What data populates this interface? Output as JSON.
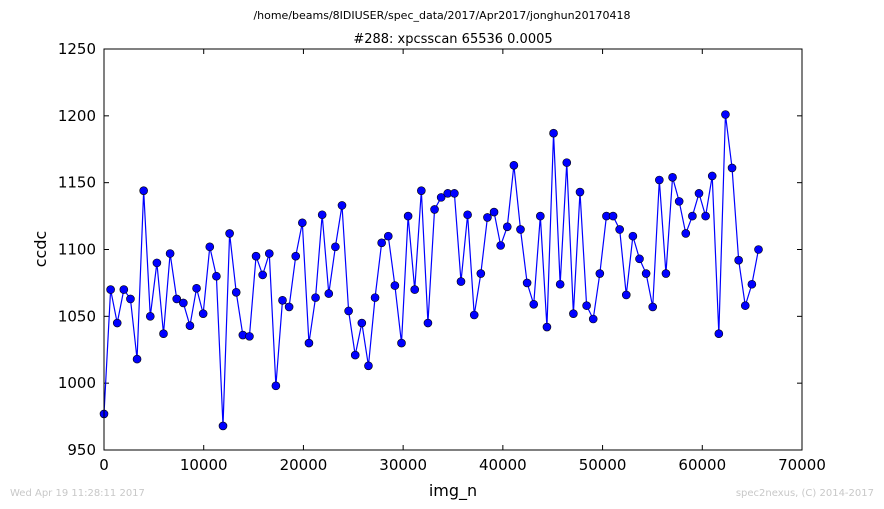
{
  "chart_data": {
    "type": "line",
    "suptitle": "/home/beams/8IDIUSER/spec_data/2017/Apr2017/jonghun20170418",
    "title": "#288: xpcsscan 65536 0.0005",
    "xlabel": "img_n",
    "ylabel": "ccdc",
    "xlim": [
      0,
      70000
    ],
    "ylim": [
      950,
      1250
    ],
    "xticks": [
      0,
      10000,
      20000,
      30000,
      40000,
      50000,
      60000,
      70000
    ],
    "yticks": [
      950,
      1000,
      1050,
      1100,
      1150,
      1200,
      1250
    ],
    "grid": false,
    "series": [
      {
        "color": "#0000ff",
        "marker": "circle",
        "x": [
          0,
          663,
          1326,
          1989,
          2652,
          3315,
          3978,
          4641,
          5304,
          5967,
          6630,
          7293,
          7956,
          8619,
          9282,
          9945,
          10608,
          11271,
          11934,
          12597,
          13260,
          13923,
          14586,
          15249,
          15912,
          16575,
          17238,
          17901,
          18564,
          19227,
          19890,
          20553,
          21216,
          21879,
          22542,
          23205,
          23868,
          24531,
          25194,
          25857,
          26520,
          27183,
          27846,
          28509,
          29172,
          29835,
          30498,
          31161,
          31824,
          32487,
          33150,
          33813,
          34476,
          35139,
          35802,
          36465,
          37128,
          37791,
          38454,
          39117,
          39780,
          40443,
          41106,
          41769,
          42432,
          43095,
          43758,
          44421,
          45084,
          45747,
          46410,
          47073,
          47736,
          48399,
          49062,
          49725,
          50388,
          51051,
          51714,
          52377,
          53040,
          53703,
          54366,
          55029,
          55692,
          56355,
          57018,
          57681,
          58344,
          59007,
          59670,
          60333,
          60996,
          61659,
          62322,
          62985,
          63648,
          64311,
          64974,
          65637
        ],
        "y": [
          977,
          1070,
          1045,
          1070,
          1063,
          1018,
          1144,
          1050,
          1090,
          1037,
          1097,
          1063,
          1060,
          1043,
          1071,
          1052,
          1102,
          1080,
          968,
          1112,
          1068,
          1036,
          1035,
          1095,
          1081,
          1097,
          998,
          1062,
          1057,
          1095,
          1120,
          1030,
          1064,
          1126,
          1067,
          1102,
          1133,
          1054,
          1021,
          1045,
          1013,
          1064,
          1105,
          1110,
          1073,
          1030,
          1125,
          1070,
          1144,
          1045,
          1130,
          1139,
          1142,
          1142,
          1076,
          1126,
          1051,
          1082,
          1124,
          1128,
          1103,
          1117,
          1163,
          1115,
          1075,
          1059,
          1125,
          1042,
          1187,
          1074,
          1165,
          1052,
          1143,
          1058,
          1048,
          1082,
          1125,
          1125,
          1115,
          1066,
          1110,
          1093,
          1082,
          1057,
          1152,
          1082,
          1154,
          1136,
          1112,
          1125,
          1142,
          1125,
          1155,
          1037,
          1201,
          1161,
          1092,
          1058,
          1074,
          1100
        ]
      }
    ]
  },
  "footer": {
    "left": "Wed Apr 19 11:28:11 2017",
    "right": "spec2nexus, (C) 2014-2017"
  }
}
